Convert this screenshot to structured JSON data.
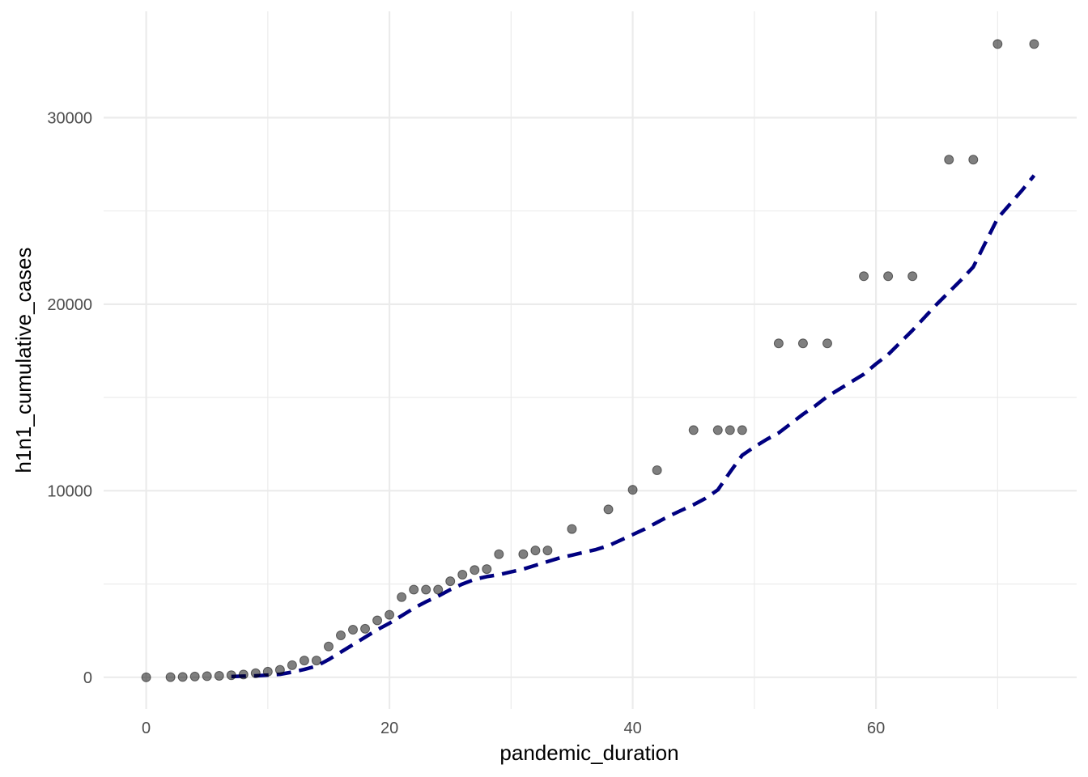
{
  "chart_data": {
    "type": "scatter",
    "xlabel": "pandemic_duration",
    "ylabel": "h1n1_cumulative_cases",
    "xlim": [
      -3.5,
      76.5
    ],
    "ylim": [
      -1700,
      35700
    ],
    "x_ticks": [
      0,
      20,
      40,
      60
    ],
    "x_tick_labels": [
      "0",
      "20",
      "40",
      "60"
    ],
    "x_minor_ticks": [
      10,
      30,
      50,
      70
    ],
    "y_ticks": [
      0,
      10000,
      20000,
      30000
    ],
    "y_tick_labels": [
      "0",
      "10000",
      "20000",
      "30000"
    ],
    "y_minor_ticks": [
      5000,
      15000,
      25000
    ],
    "grid": true,
    "legend": "none",
    "colors": {
      "points": "#000000",
      "trend_line": "#000080",
      "grid": "#ebebeb"
    },
    "series": [
      {
        "type": "scatter",
        "x": [
          0,
          2,
          3,
          4,
          5,
          6,
          7,
          8,
          9,
          10,
          11,
          12,
          13,
          14,
          15,
          16,
          17,
          18,
          19,
          20,
          21,
          22,
          23,
          24,
          25,
          26,
          27,
          28,
          29,
          31,
          32,
          33,
          35,
          38,
          40,
          42,
          45,
          47,
          48,
          49,
          52,
          54,
          56,
          59,
          61,
          63,
          66,
          68,
          70,
          73
        ],
        "y": [
          0,
          10,
          20,
          40,
          60,
          80,
          110,
          150,
          220,
          300,
          400,
          650,
          900,
          900,
          1650,
          2250,
          2550,
          2600,
          3050,
          3350,
          4300,
          4700,
          4700,
          4700,
          5150,
          5500,
          5750,
          5800,
          6600,
          6600,
          6800,
          6800,
          7950,
          9000,
          10050,
          11100,
          13250,
          13250,
          13250,
          13250,
          17900,
          17900,
          17900,
          21500,
          21500,
          21500,
          27750,
          27750,
          33950,
          33950
        ]
      },
      {
        "type": "line",
        "x": [
          7,
          8,
          9,
          10,
          11,
          12,
          13,
          14,
          15,
          16,
          17,
          18,
          19,
          20,
          21,
          22,
          23,
          24,
          25,
          26,
          27,
          28,
          29,
          30,
          31,
          32,
          33,
          34,
          35,
          36,
          37,
          38,
          39,
          40,
          41,
          42,
          43,
          44,
          45,
          46,
          47,
          48,
          49,
          50,
          51,
          52,
          53,
          54,
          55,
          56,
          57,
          58,
          59,
          60,
          61,
          62,
          63,
          64,
          65,
          66,
          67,
          68,
          69,
          70,
          71,
          72,
          73
        ],
        "y": [
          40,
          60,
          80,
          120,
          160,
          280,
          420,
          600,
          950,
          1350,
          1750,
          2150,
          2550,
          2900,
          3300,
          3700,
          4050,
          4350,
          4700,
          5000,
          5250,
          5400,
          5500,
          5650,
          5800,
          6000,
          6200,
          6400,
          6550,
          6700,
          6850,
          7050,
          7350,
          7650,
          7950,
          8300,
          8650,
          8950,
          9250,
          9600,
          10050,
          11000,
          11900,
          12350,
          12750,
          13100,
          13600,
          14100,
          14550,
          15050,
          15450,
          15850,
          16250,
          16800,
          17300,
          17950,
          18600,
          19300,
          20000,
          20650,
          21300,
          22000,
          23300,
          24600,
          25350,
          26100,
          26900
        ]
      }
    ]
  }
}
